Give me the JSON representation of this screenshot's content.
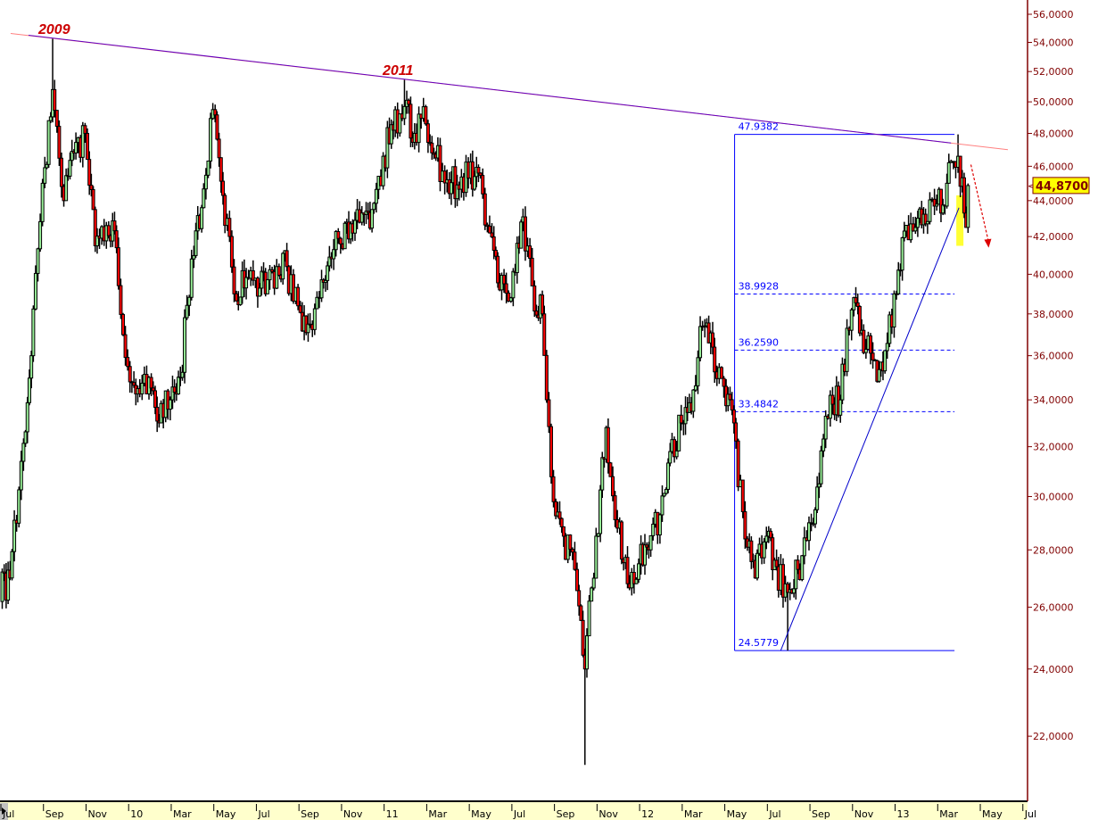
{
  "chart_data": {
    "type": "candlestick",
    "y_scale": "log",
    "ylim": [
      20.8,
      57
    ],
    "grid": false,
    "colors": {
      "up": "#98f098",
      "down": "#ff0000",
      "outline": "#000000",
      "axis": "#800000",
      "fib": "#0000ff",
      "resistance": "#c00060",
      "highlight": "#ffff00",
      "axis_band": "#ffffcc"
    },
    "y_ticks": [
      {
        "value": 56,
        "label": "56,0000"
      },
      {
        "value": 54,
        "label": "54,0000"
      },
      {
        "value": 52,
        "label": "52,0000"
      },
      {
        "value": 50,
        "label": "50,0000"
      },
      {
        "value": 48,
        "label": "48,0000"
      },
      {
        "value": 46,
        "label": "46,0000"
      },
      {
        "value": 44,
        "label": "44,0000"
      },
      {
        "value": 42,
        "label": "42,0000"
      },
      {
        "value": 40,
        "label": "40,0000"
      },
      {
        "value": 38,
        "label": "38,0000"
      },
      {
        "value": 36,
        "label": "36,0000"
      },
      {
        "value": 34,
        "label": "34,0000"
      },
      {
        "value": 32,
        "label": "32,0000"
      },
      {
        "value": 30,
        "label": "30,0000"
      },
      {
        "value": 28,
        "label": "28,0000"
      },
      {
        "value": 26,
        "label": "26,0000"
      },
      {
        "value": 24,
        "label": "24,0000"
      },
      {
        "value": 22,
        "label": "22,0000"
      }
    ],
    "x_ticks": [
      {
        "date": "2009-07-01",
        "label": "Jul"
      },
      {
        "date": "2009-09-01",
        "label": "Sep"
      },
      {
        "date": "2009-11-01",
        "label": "Nov"
      },
      {
        "date": "2010-01-01",
        "label": "10"
      },
      {
        "date": "2010-03-01",
        "label": "Mar"
      },
      {
        "date": "2010-05-01",
        "label": "May"
      },
      {
        "date": "2010-07-01",
        "label": "Jul"
      },
      {
        "date": "2010-09-01",
        "label": "Sep"
      },
      {
        "date": "2010-11-01",
        "label": "Nov"
      },
      {
        "date": "2011-01-01",
        "label": "11"
      },
      {
        "date": "2011-03-01",
        "label": "Mar"
      },
      {
        "date": "2011-05-01",
        "label": "May"
      },
      {
        "date": "2011-07-01",
        "label": "Jul"
      },
      {
        "date": "2011-09-01",
        "label": "Sep"
      },
      {
        "date": "2011-11-01",
        "label": "Nov"
      },
      {
        "date": "2012-01-01",
        "label": "12"
      },
      {
        "date": "2012-03-01",
        "label": "Mar"
      },
      {
        "date": "2012-05-01",
        "label": "May"
      },
      {
        "date": "2012-07-01",
        "label": "Jul"
      },
      {
        "date": "2012-09-01",
        "label": "Sep"
      },
      {
        "date": "2012-11-01",
        "label": "Nov"
      },
      {
        "date": "2013-01-01",
        "label": "13"
      },
      {
        "date": "2013-03-01",
        "label": "Mar"
      },
      {
        "date": "2013-05-01",
        "label": "May"
      },
      {
        "date": "2013-07-01",
        "label": "Jul"
      }
    ],
    "x": [
      "2009-07-01",
      "2009-07-15",
      "2009-08-01",
      "2009-08-15",
      "2009-09-01",
      "2009-09-15",
      "2009-10-01",
      "2009-10-15",
      "2009-11-01",
      "2009-11-15",
      "2009-12-01",
      "2009-12-15",
      "2010-01-01",
      "2010-01-15",
      "2010-02-01",
      "2010-02-15",
      "2010-03-01",
      "2010-03-15",
      "2010-04-01",
      "2010-04-15",
      "2010-05-01",
      "2010-05-15",
      "2010-06-01",
      "2010-06-15",
      "2010-07-01",
      "2010-07-15",
      "2010-08-01",
      "2010-08-15",
      "2010-09-01",
      "2010-09-15",
      "2010-10-01",
      "2010-10-15",
      "2010-11-01",
      "2010-11-15",
      "2010-12-01",
      "2010-12-15",
      "2011-01-01",
      "2011-01-15",
      "2011-02-01",
      "2011-02-15",
      "2011-03-01",
      "2011-03-15",
      "2011-04-01",
      "2011-04-15",
      "2011-05-01",
      "2011-05-15",
      "2011-06-01",
      "2011-06-15",
      "2011-07-01",
      "2011-07-15",
      "2011-08-01",
      "2011-08-15",
      "2011-09-01",
      "2011-09-15",
      "2011-10-01",
      "2011-10-15",
      "2011-11-01",
      "2011-11-15",
      "2011-12-01",
      "2011-12-15",
      "2012-01-01",
      "2012-01-15",
      "2012-02-01",
      "2012-02-15",
      "2012-03-01",
      "2012-03-15",
      "2012-04-01",
      "2012-04-15",
      "2012-05-01",
      "2012-05-15",
      "2012-06-01",
      "2012-06-15",
      "2012-07-01",
      "2012-07-15",
      "2012-08-01",
      "2012-08-15",
      "2012-09-01",
      "2012-09-15",
      "2012-10-01",
      "2012-10-15",
      "2012-11-01",
      "2012-11-15",
      "2012-12-01",
      "2012-12-15",
      "2013-01-01",
      "2013-01-15",
      "2013-02-01",
      "2013-02-15",
      "2013-03-01",
      "2013-03-15",
      "2013-04-01",
      "2013-04-12"
    ],
    "close": [
      27.0,
      31.4,
      36.0,
      45.0,
      50.8,
      44.0,
      46.8,
      48.0,
      41.5,
      42.6,
      41.4,
      35.5,
      34.5,
      35.0,
      33.0,
      34.0,
      35.0,
      40.8,
      43.6,
      49.5,
      44.3,
      39.0,
      39.3,
      39.8,
      39.0,
      40.4,
      40.4,
      38.4,
      37.5,
      38.8,
      40.9,
      41.6,
      42.7,
      43.3,
      43.5,
      46.6,
      48.2,
      49.7,
      48.0,
      48.6,
      46.5,
      45.2,
      44.9,
      45.3,
      45.6,
      42.2,
      39.2,
      38.8,
      42.8,
      39.4,
      38.0,
      29.8,
      28.5,
      27.3,
      24.0,
      28.5,
      32.8,
      28.8,
      26.8,
      27.5,
      28.0,
      29.3,
      31.8,
      33.0,
      33.5,
      37.4,
      36.4,
      34.6,
      33.0,
      28.4,
      27.0,
      28.5,
      27.4,
      26.5,
      27.3,
      29.0,
      30.5,
      34.2,
      34.0,
      38.2,
      37.2,
      35.8,
      35.3,
      39.0,
      42.3,
      42.5,
      42.7,
      43.8,
      45.0,
      46.6,
      42.5,
      44.87
    ],
    "extremes": [
      {
        "date": "2009-09-01",
        "high": 54.3
      },
      {
        "date": "2011-01-15",
        "high": 51.5
      },
      {
        "date": "2011-10-01",
        "low": 21.2
      },
      {
        "date": "2012-07-15",
        "low": 24.5779
      },
      {
        "date": "2013-03-15",
        "high": 47.9382
      }
    ],
    "annotations": {
      "label_2009": "2009",
      "label_2011": "2011",
      "resistance_line": {
        "from": {
          "date": "2009-08-10",
          "value": 54.5
        },
        "to": {
          "date": "2013-06-10",
          "value": 47.0
        }
      },
      "support_line": {
        "from": {
          "date": "2012-07-20",
          "value": 24.5779
        },
        "to": {
          "date": "2013-04-01",
          "value": 43.6
        }
      },
      "forecast_arrow": {
        "from": {
          "date": "2013-04-18",
          "value": 46.1
        },
        "to": {
          "date": "2013-05-13",
          "value": 41.4
        }
      },
      "highlight": {
        "date": "2013-04-01",
        "high": 44.3,
        "low": 41.5
      }
    },
    "fibonacci": {
      "start_date": "2012-05-15",
      "end_date": "2013-03-25",
      "levels": [
        {
          "value": 47.9382,
          "label": "47.9382",
          "style": "solid"
        },
        {
          "value": 38.9928,
          "label": "38.9928",
          "style": "dashed"
        },
        {
          "value": 36.259,
          "label": "36.2590",
          "style": "dashed"
        },
        {
          "value": 33.4842,
          "label": "33.4842",
          "style": "dashed"
        },
        {
          "value": 24.5779,
          "label": "24.5779",
          "style": "solid"
        }
      ]
    },
    "last_price": {
      "value": 44.87,
      "label": "44,8700"
    }
  }
}
